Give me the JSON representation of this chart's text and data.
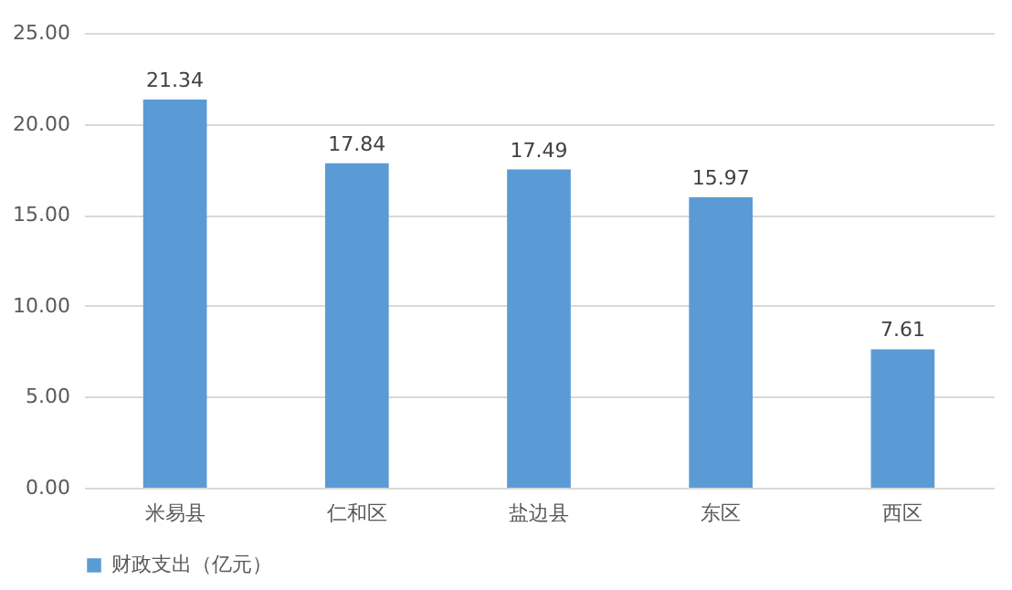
{
  "chart_data": {
    "type": "bar",
    "categories": [
      "米易县",
      "仁和区",
      "盐边县",
      "东区",
      "西区"
    ],
    "series": [
      {
        "name": "财政支出（亿元）",
        "color": "#5b9bd5",
        "values": [
          21.34,
          17.84,
          17.49,
          15.97,
          7.61
        ]
      }
    ],
    "ylim": [
      0,
      25
    ],
    "yticks": [
      {
        "value": 0,
        "label": "0.00"
      },
      {
        "value": 5,
        "label": "5.00"
      },
      {
        "value": 10,
        "label": "10.00"
      },
      {
        "value": 15,
        "label": "15.00"
      },
      {
        "value": 20,
        "label": "20.00"
      },
      {
        "value": 25,
        "label": "25.00"
      }
    ],
    "grid": "y",
    "legend": "bottom",
    "data_labels": true
  }
}
